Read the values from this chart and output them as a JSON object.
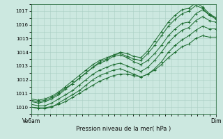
{
  "title": "Pression niveau de la mer( hPa )",
  "xlabel_left": "Ve6am",
  "xlabel_right": "Dim",
  "ylim": [
    1009.5,
    1017.5
  ],
  "yticks": [
    1010,
    1011,
    1012,
    1013,
    1014,
    1015,
    1016,
    1017
  ],
  "background_color": "#cce8e0",
  "grid_color": "#aacfc5",
  "line_color": "#1a6b2e",
  "series": [
    [
      1010.5,
      1010.4,
      1010.5,
      1010.7,
      1011.0,
      1011.4,
      1011.7,
      1012.1,
      1012.5,
      1012.9,
      1013.2,
      1013.4,
      1013.7,
      1013.8,
      1013.6,
      1013.3,
      1013.1,
      1013.4,
      1013.9,
      1014.5,
      1015.2,
      1015.7,
      1016.1,
      1016.2,
      1016.8,
      1017.1,
      1016.7,
      1016.5
    ],
    [
      1010.2,
      1010.1,
      1010.1,
      1010.3,
      1010.6,
      1010.9,
      1011.2,
      1011.6,
      1012.0,
      1012.4,
      1012.7,
      1012.9,
      1013.1,
      1013.2,
      1013.0,
      1012.8,
      1012.6,
      1012.9,
      1013.4,
      1014.0,
      1014.7,
      1015.2,
      1015.6,
      1015.8,
      1016.3,
      1016.6,
      1016.3,
      1016.2
    ],
    [
      1010.0,
      1009.9,
      1009.9,
      1010.0,
      1010.3,
      1010.6,
      1010.9,
      1011.2,
      1011.6,
      1012.0,
      1012.3,
      1012.5,
      1012.7,
      1012.8,
      1012.6,
      1012.4,
      1012.2,
      1012.4,
      1012.8,
      1013.3,
      1014.0,
      1014.5,
      1014.9,
      1015.2,
      1015.6,
      1015.9,
      1015.7,
      1015.7
    ],
    [
      1010.6,
      1010.5,
      1010.6,
      1010.8,
      1011.1,
      1011.5,
      1011.9,
      1012.3,
      1012.7,
      1013.1,
      1013.4,
      1013.6,
      1013.8,
      1013.9,
      1013.7,
      1013.5,
      1013.4,
      1013.9,
      1014.5,
      1015.2,
      1015.9,
      1016.4,
      1016.8,
      1017.0,
      1017.4,
      1017.2,
      1016.7,
      1016.4
    ],
    [
      1010.0,
      1009.95,
      1009.95,
      1010.05,
      1010.2,
      1010.4,
      1010.7,
      1011.0,
      1011.3,
      1011.6,
      1011.9,
      1012.1,
      1012.3,
      1012.4,
      1012.4,
      1012.3,
      1012.2,
      1012.4,
      1012.7,
      1013.1,
      1013.6,
      1014.0,
      1014.4,
      1014.6,
      1015.0,
      1015.2,
      1015.1,
      1015.1
    ],
    [
      1010.4,
      1010.3,
      1010.4,
      1010.6,
      1010.9,
      1011.3,
      1011.7,
      1012.1,
      1012.5,
      1012.9,
      1013.3,
      1013.5,
      1013.8,
      1014.0,
      1013.9,
      1013.7,
      1013.6,
      1014.1,
      1014.8,
      1015.5,
      1016.2,
      1016.7,
      1017.1,
      1017.2,
      1017.6,
      1017.3,
      1016.8,
      1016.5
    ]
  ]
}
